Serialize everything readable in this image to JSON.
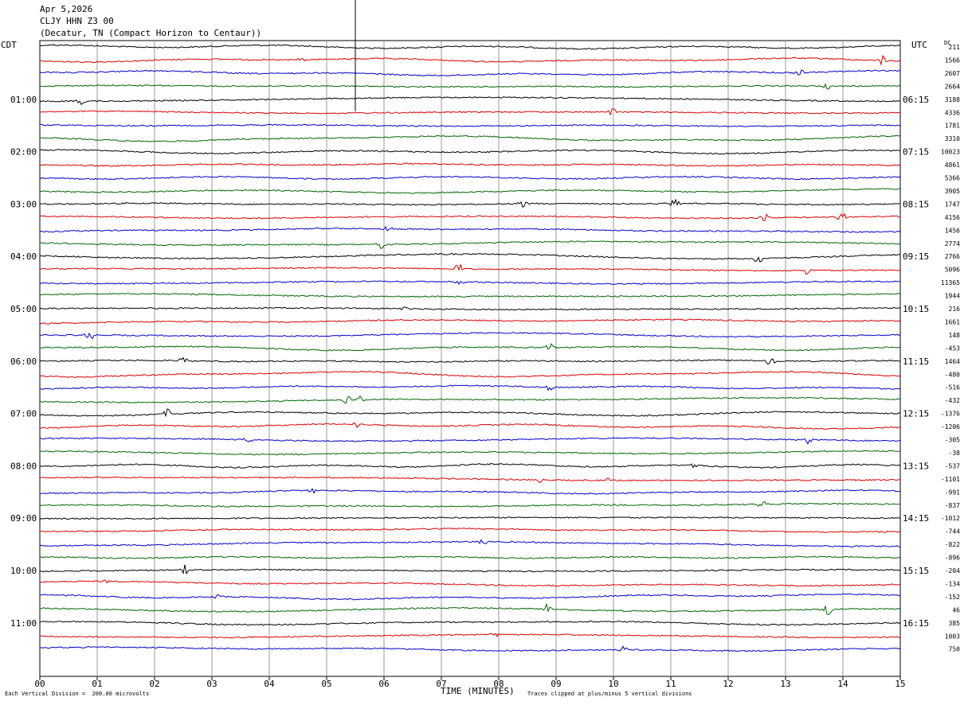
{
  "header": {
    "date": "Apr 5,2026",
    "station": "CLJY HHN Z3 00",
    "location": "(Decatur, TN (Compact Horizon to Centaur))"
  },
  "left_zone": "CDT",
  "right_zone": "UTC",
  "dc_label": "DC",
  "footer": {
    "scale_note": "Each Vertical Division =  200.00 microvolts",
    "clip_note": "Traces clipped at plus/minus 5 vertical divisions"
  },
  "colors": {
    "black": "#000000",
    "red": "#dd0000",
    "blue": "#0000cc",
    "green": "#006600"
  },
  "chart_data": {
    "type": "line",
    "xlabel": "TIME (MINUTES)",
    "x_ticks": [
      "00",
      "01",
      "02",
      "03",
      "04",
      "05",
      "06",
      "07",
      "08",
      "09",
      "10",
      "11",
      "12",
      "13",
      "14",
      "15"
    ],
    "xlim": [
      0,
      15
    ],
    "trace_colors": [
      "black",
      "red",
      "blue",
      "green"
    ],
    "left_hour_labels": [
      "01:00",
      "02:00",
      "03:00",
      "04:00",
      "05:00",
      "06:00",
      "07:00",
      "08:00",
      "09:00",
      "10:00",
      "11:00"
    ],
    "right_hour_labels": [
      "06:15",
      "07:15",
      "08:15",
      "09:15",
      "10:15",
      "11:15",
      "12:15",
      "13:15",
      "14:15",
      "15:15",
      "16:15"
    ],
    "dc_offsets": [
      211,
      1566,
      2607,
      2664,
      3188,
      4336,
      1781,
      3310,
      10023,
      4861,
      5366,
      3905,
      1747,
      4156,
      1456,
      2774,
      2766,
      5096,
      11365,
      1944,
      216,
      1661,
      148,
      -453,
      1464,
      -480,
      -516,
      -432,
      -1376,
      -1206,
      -305,
      -38,
      -537,
      -1101,
      -991,
      -837,
      -1012,
      -744,
      -822,
      -896,
      -204,
      -134,
      -152,
      46,
      385,
      1003,
      750
    ]
  }
}
